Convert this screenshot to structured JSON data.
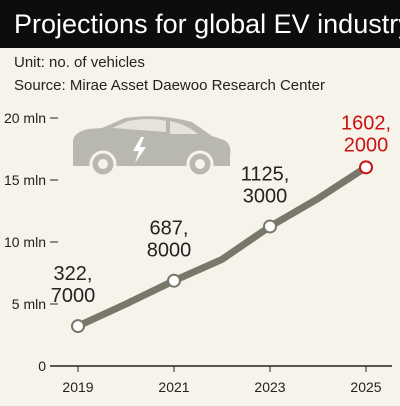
{
  "title": "Projections for global EV industry",
  "unit": "Unit: no. of vehicles",
  "source": "Source: Mirae Asset Daewoo Research Center",
  "colors": {
    "line": "#77776a",
    "highlight": "#cc1111",
    "text": "#222222",
    "background": "#f6f3eb",
    "car_icon": "#b8b8b0"
  },
  "icons": [
    "car-icon",
    "lightning-bolt-icon"
  ],
  "chart_data": {
    "type": "line",
    "title": "Projections for global EV industry",
    "xlabel": "",
    "ylabel": "",
    "x": [
      2019,
      2020,
      2021,
      2022,
      2023,
      2024,
      2025
    ],
    "values": [
      3.22,
      5.0,
      6.878,
      8.6,
      11.253,
      13.5,
      16.022
    ],
    "y_tick_labels": [
      "0",
      "5 mln",
      "10 mln",
      "15 mln",
      "20 mln"
    ],
    "x_tick_labels": [
      "2019",
      "2021",
      "2023",
      "2025"
    ],
    "ylim": [
      0,
      20
    ],
    "xlim": [
      2019,
      2025
    ],
    "grid": false,
    "labeled_points": [
      {
        "x": 2019,
        "y": 3.22,
        "label_line1": "322,",
        "label_line2": "7000",
        "highlight": false
      },
      {
        "x": 2021,
        "y": 6.878,
        "label_line1": "687,",
        "label_line2": "8000",
        "highlight": false
      },
      {
        "x": 2023,
        "y": 11.253,
        "label_line1": "1125,",
        "label_line2": "3000",
        "highlight": false
      },
      {
        "x": 2025,
        "y": 16.022,
        "label_line1": "1602,",
        "label_line2": "2000",
        "highlight": true
      }
    ]
  }
}
